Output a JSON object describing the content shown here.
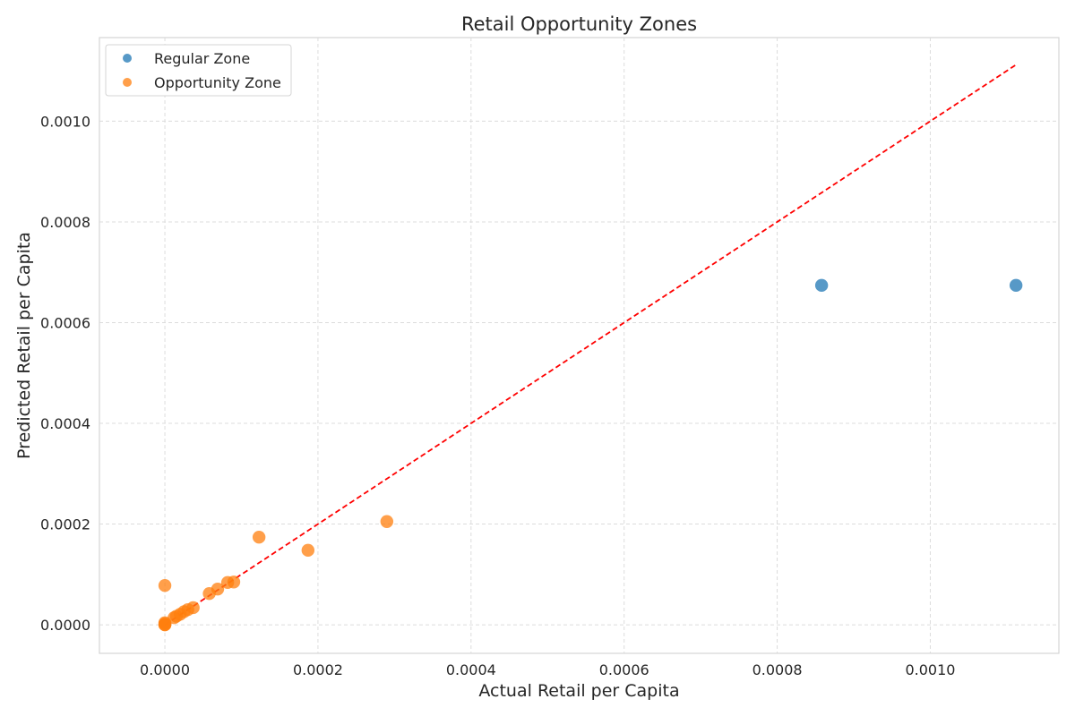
{
  "chart_data": {
    "type": "scatter",
    "title": "Retail Opportunity Zones",
    "xlabel": "Actual Retail per Capita",
    "ylabel": "Predicted Retail per Capita",
    "xlim": [
      -8.55e-05,
      0.001168
    ],
    "ylim": [
      -5.67e-05,
      0.001166
    ],
    "xticks": [
      0.0,
      0.0002,
      0.0004,
      0.0006,
      0.0008,
      0.001
    ],
    "yticks": [
      0.0,
      0.0002,
      0.0004,
      0.0006,
      0.0008,
      0.001
    ],
    "xtick_labels": [
      "0.0000",
      "0.0002",
      "0.0004",
      "0.0006",
      "0.0008",
      "0.0010"
    ],
    "ytick_labels": [
      "0.0000",
      "0.0002",
      "0.0004",
      "0.0006",
      "0.0008",
      "0.0010"
    ],
    "grid": true,
    "legend_position": "top-left",
    "reference_line": {
      "x": [
        0.0,
        0.001112
      ],
      "y": [
        0.0,
        0.001112
      ],
      "color": "#ff0000",
      "style": "dashed"
    },
    "series": [
      {
        "name": "Regular Zone",
        "color": "#1f77b4",
        "points": [
          {
            "x": 0.000858,
            "y": 0.000674
          },
          {
            "x": 0.001112,
            "y": 0.000674
          }
        ]
      },
      {
        "name": "Opportunity Zone",
        "color": "#ff7f0e",
        "points": [
          {
            "x": 0.00029,
            "y": 0.000205
          },
          {
            "x": 0.000123,
            "y": 0.000174
          },
          {
            "x": 0.000187,
            "y": 0.000148
          },
          {
            "x": 0.0,
            "y": 7.8e-05
          },
          {
            "x": 9e-05,
            "y": 8.5e-05
          },
          {
            "x": 8.2e-05,
            "y": 8.4e-05
          },
          {
            "x": 6.9e-05,
            "y": 7.1e-05
          },
          {
            "x": 5.8e-05,
            "y": 6.2e-05
          },
          {
            "x": 3.7e-05,
            "y": 3.4e-05
          },
          {
            "x": 3e-05,
            "y": 3e-05
          },
          {
            "x": 2.5e-05,
            "y": 2.6e-05
          },
          {
            "x": 2e-05,
            "y": 2.1e-05
          },
          {
            "x": 1.5e-05,
            "y": 1.7e-05
          },
          {
            "x": 1.2e-05,
            "y": 1.4e-05
          },
          {
            "x": 0.0,
            "y": 4e-06
          },
          {
            "x": 0.0,
            "y": 2e-06
          },
          {
            "x": 0.0,
            "y": 0.0
          },
          {
            "x": 0.0,
            "y": 0.0
          }
        ]
      }
    ]
  }
}
